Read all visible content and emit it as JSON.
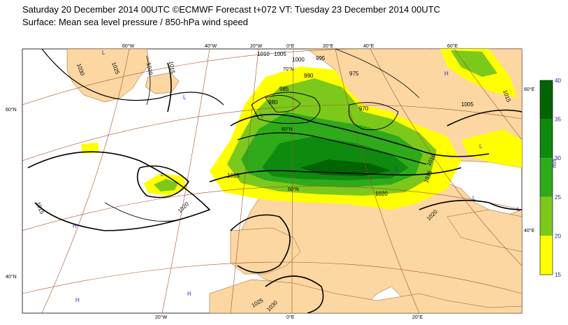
{
  "header": {
    "line1": "Saturday 20 December 2014 00UTC ©ECMWF Forecast t+072 VT: Tuesday 23 December 2014 00UTC",
    "line2": "Surface: Mean sea level pressure / 850-hPa wind speed"
  },
  "graticule": {
    "lon_top": [
      "60°W",
      "40°W",
      "20°W",
      "0°E",
      "20°E",
      "40°E",
      "60°E"
    ],
    "lon_bottom": [
      "20°W",
      "0°E",
      "20°E"
    ],
    "lat_left": [
      "60°N",
      "40°N"
    ],
    "lat_right": [
      "60°E",
      "40°E"
    ],
    "inner": [
      "70°N",
      "60°N",
      "50°N"
    ]
  },
  "isobars": [
    "1030",
    "1025",
    "1020",
    "1015",
    "1010",
    "1005",
    "1000",
    "995",
    "990",
    "985",
    "980",
    "975",
    "970",
    "1015",
    "1020",
    "1015",
    "1010",
    "1005",
    "1020",
    "1015",
    "1015",
    "1020",
    "1025",
    "1030"
  ],
  "pressure_centres": [
    "L",
    "L",
    "L",
    "L",
    "L",
    "H",
    "H",
    "L",
    "L",
    "L",
    "H",
    "H"
  ],
  "colorbar": {
    "unit": "m/s",
    "ticks": [
      "40",
      "35",
      "30",
      "25",
      "20",
      "15"
    ],
    "colors": [
      "#006400",
      "#0e8a0e",
      "#2eaa1a",
      "#7dc91b",
      "#ffff00"
    ]
  }
}
